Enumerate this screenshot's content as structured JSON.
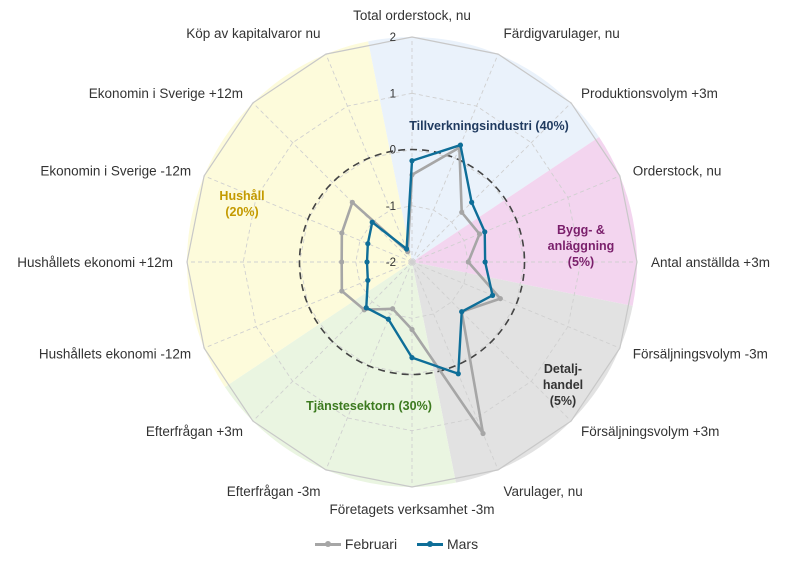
{
  "chart_data": {
    "type": "radar",
    "categories": [
      "Total orderstock, nu",
      "Färdigvarulager, nu",
      "Produktionsvolym +3m",
      "Orderstock, nu",
      "Antal anställda +3m",
      "Försäljningsvolym -3m",
      "Försäljningsvolym +3m",
      "Varulager, nu",
      "Företagets verksamhet -3m",
      "Efterfrågan -3m",
      "Efterfrågan +3m",
      "Hushållets ekonomi -12m",
      "Hushållets ekonomi +12m",
      "Ekonomin i Sverige -12m",
      "Ekonomin i Sverige +12m",
      "Köp av kapitalvaror nu"
    ],
    "rlim": [
      -2,
      2
    ],
    "ticks": [
      "2",
      "1",
      "0",
      "-1",
      "-2"
    ],
    "tick_values": [
      2,
      1,
      0,
      -1,
      -2
    ],
    "reference_circle": 0,
    "series": [
      {
        "name": "Februari",
        "color": "#a6a6a6",
        "values": [
          -0.45,
          0.2,
          -0.75,
          -0.7,
          -1.0,
          -0.3,
          -0.75,
          1.3,
          -0.8,
          -1.1,
          -0.8,
          -0.65,
          -0.75,
          -0.65,
          -0.5,
          -1.8
        ]
      },
      {
        "name": "Mars",
        "color": "#0e6e98",
        "values": [
          -0.2,
          0.25,
          -0.5,
          -0.6,
          -0.7,
          -0.45,
          -0.75,
          0.15,
          -0.3,
          -0.9,
          -0.85,
          -1.15,
          -1.2,
          -1.15,
          -1.0,
          -1.75
        ]
      }
    ],
    "sectors": [
      {
        "label": [
          "Tillverkningsindustri (40%)"
        ],
        "from": 0,
        "to": 3,
        "fill": "#eaf2fb",
        "text_color": "#1f3a5f"
      },
      {
        "label": [
          "Bygg- &",
          "anläggning",
          "(5%)"
        ],
        "from": 3,
        "to": 5,
        "fill": "#f3d5ef",
        "text_color": "#7a1f6b"
      },
      {
        "label": [
          "Detalj-",
          "handel",
          "(5%)"
        ],
        "from": 5,
        "to": 8,
        "fill": "#e2e2e2",
        "text_color": "#333333"
      },
      {
        "label": [
          "Tjänstesektorn (30%)"
        ],
        "from": 8,
        "to": 11,
        "fill": "#eaf5e1",
        "text_color": "#3c7a1f"
      },
      {
        "label": [
          "Hushåll",
          "(20%)"
        ],
        "from": 11,
        "to": 16,
        "fill": "#fdfbdb",
        "text_color": "#c49a00"
      }
    ]
  },
  "legend": {
    "items": [
      {
        "label": "Februari",
        "color": "#a6a6a6"
      },
      {
        "label": "Mars",
        "color": "#0e6e98"
      }
    ]
  }
}
